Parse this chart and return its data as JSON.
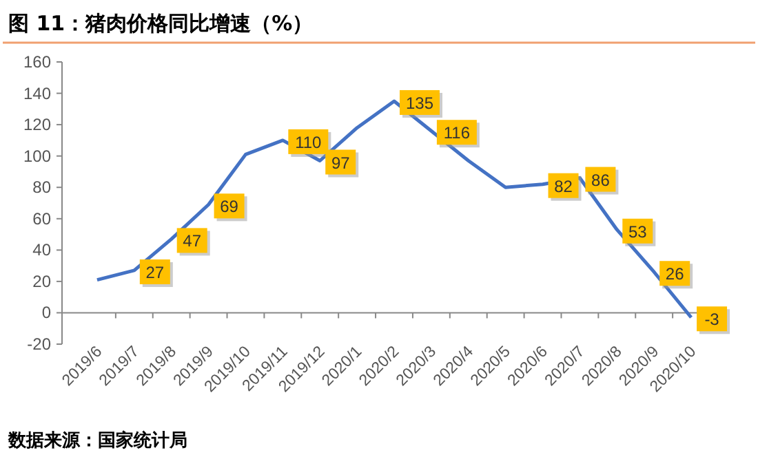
{
  "chart_data": {
    "type": "line",
    "title": "图 11：猪肉价格同比增速（%）",
    "categories": [
      "2019/6",
      "2019/7",
      "2019/8",
      "2019/9",
      "2019/10",
      "2019/11",
      "2019/12",
      "2020/1",
      "2020/2",
      "2020/3",
      "2020/4",
      "2020/5",
      "2020/6",
      "2020/7",
      "2020/8",
      "2020/9",
      "2020/10"
    ],
    "series": [
      {
        "color": "#4472c4",
        "values": [
          21,
          27,
          47,
          69,
          101,
          110,
          97,
          118,
          135,
          116,
          97,
          80,
          82,
          86,
          53,
          26,
          -3
        ],
        "value_labels": [
          null,
          "27",
          "47",
          "69",
          null,
          "110",
          "97",
          null,
          "135",
          "116",
          null,
          null,
          "82",
          "86",
          "53",
          "26",
          "-3"
        ]
      }
    ],
    "ylim": [
      -20,
      160
    ],
    "yticks": [
      -20,
      0,
      20,
      40,
      60,
      80,
      100,
      120,
      140,
      160
    ],
    "grid": false,
    "marker": "none",
    "line_style": "solid",
    "annotations": [
      "数据来源：国家统计局"
    ]
  }
}
